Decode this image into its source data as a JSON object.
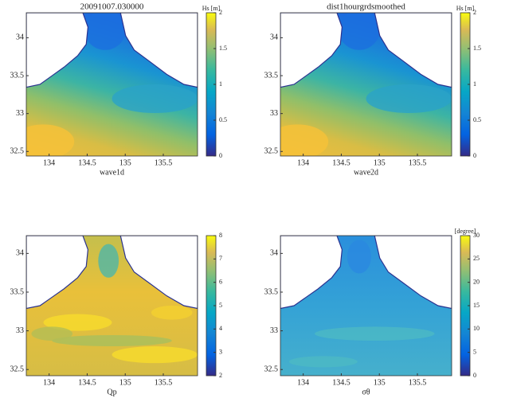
{
  "chart_data": [
    {
      "type": "heatmap",
      "title": "20091007.030000",
      "xlabel": "wave1d",
      "colorbar_label": "Hs [m]",
      "xlim": [
        133.7,
        135.95
      ],
      "ylim": [
        32.44,
        34.33
      ],
      "xticks": [
        134,
        134.5,
        135,
        135.5
      ],
      "yticks": [
        32.5,
        33,
        33.5,
        34
      ],
      "clim": [
        0,
        2
      ],
      "cticks": [
        0,
        0.5,
        1,
        1.5,
        2
      ]
    },
    {
      "type": "heatmap",
      "title": "dist1hourgrdsmoothed",
      "xlabel": "wave2d",
      "colorbar_label": "Hs [m]",
      "xlim": [
        133.7,
        135.95
      ],
      "ylim": [
        32.44,
        34.33
      ],
      "xticks": [
        134,
        134.5,
        135,
        135.5
      ],
      "yticks": [
        32.5,
        33,
        33.5,
        34
      ],
      "clim": [
        0,
        2
      ],
      "cticks": [
        0,
        0.5,
        1,
        1.5,
        2
      ]
    },
    {
      "type": "heatmap",
      "xlabel": "Qp",
      "xlim": [
        133.7,
        135.95
      ],
      "ylim": [
        32.42,
        34.23
      ],
      "xticks": [
        134,
        134.5,
        135,
        135.5
      ],
      "yticks": [
        32.5,
        33,
        33.5,
        34
      ],
      "clim": [
        2,
        8
      ],
      "cticks": [
        2,
        3,
        4,
        5,
        6,
        7,
        8
      ]
    },
    {
      "type": "heatmap",
      "xlabel": "σθ",
      "colorbar_label": "[degree]",
      "xlim": [
        133.7,
        135.95
      ],
      "ylim": [
        32.42,
        34.23
      ],
      "xticks": [
        134,
        134.5,
        135,
        135.5
      ],
      "yticks": [
        32.5,
        33,
        33.5,
        34
      ],
      "clim": [
        0,
        30
      ],
      "cticks": [
        0,
        5,
        10,
        15,
        20,
        25,
        30
      ]
    }
  ]
}
